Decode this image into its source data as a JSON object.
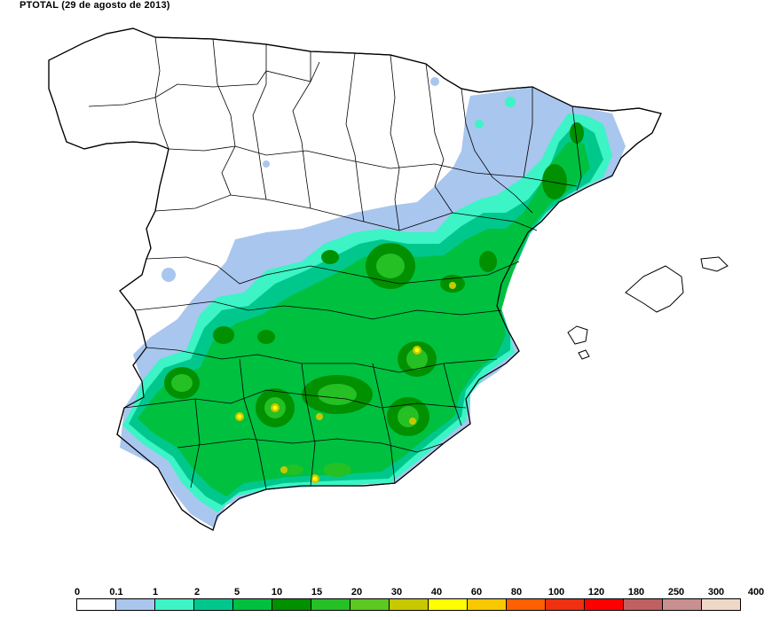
{
  "title": "PTOTAL (29 de agosto de 2013)",
  "legend": {
    "ticks": [
      "0",
      "0.1",
      "1",
      "2",
      "5",
      "10",
      "15",
      "20",
      "30",
      "40",
      "60",
      "80",
      "100",
      "120",
      "180",
      "250",
      "300",
      "400"
    ],
    "colors": [
      "#ffffff",
      "#a9c6ee",
      "#3cf4c6",
      "#00c88c",
      "#00c040",
      "#009000",
      "#24c024",
      "#5cc820",
      "#c8c800",
      "#ffff00",
      "#f8c800",
      "#ff6000",
      "#f03010",
      "#ff0000",
      "#c06060",
      "#c89090",
      "#f0d8c8"
    ]
  }
}
